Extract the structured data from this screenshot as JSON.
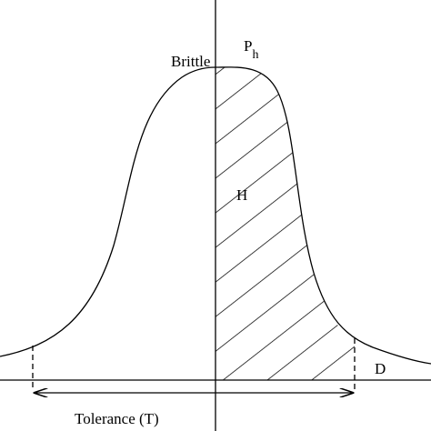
{
  "labels": {
    "brittle": "Brittle",
    "p_main": "P",
    "p_sub": "h",
    "hatched": "H",
    "d": "D",
    "tolerance": "Tolerance (T)"
  }
}
